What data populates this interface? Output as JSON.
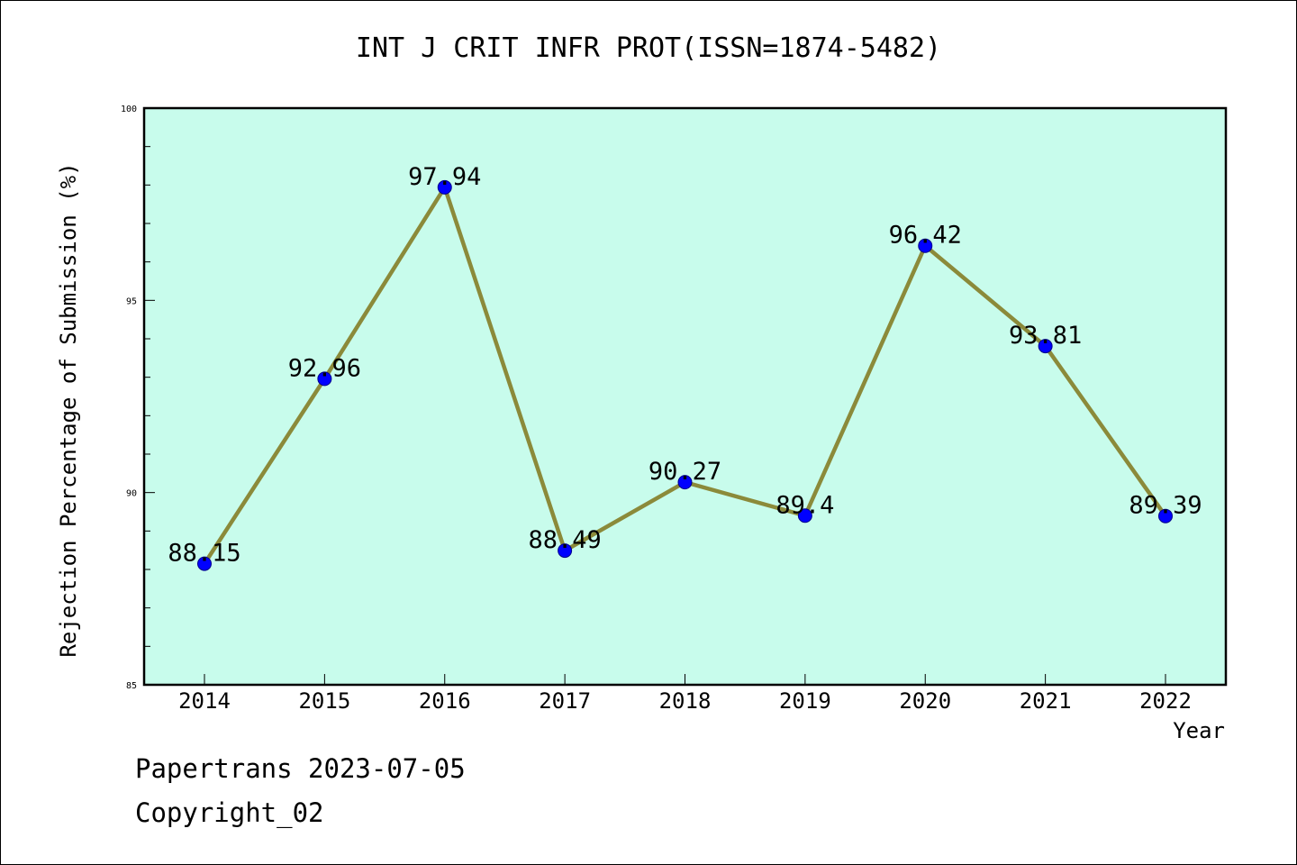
{
  "chart_data": {
    "type": "line",
    "title": "INT J CRIT INFR PROT(ISSN=1874-5482)",
    "xlabel": "Year",
    "ylabel": "Rejection Percentage of Submission (%)",
    "categories": [
      "2014",
      "2015",
      "2016",
      "2017",
      "2018",
      "2019",
      "2020",
      "2021",
      "2022"
    ],
    "values": [
      88.15,
      92.96,
      97.94,
      88.49,
      90.27,
      89.4,
      96.42,
      93.81,
      89.39
    ],
    "data_labels": [
      "88.15",
      "92.96",
      "97.94",
      "88.49",
      "90.27",
      "89.4",
      "96.42",
      "93.81",
      "89.39"
    ],
    "ylim": [
      85,
      100
    ],
    "y_ticks": [
      "85",
      "90",
      "95",
      "100"
    ],
    "grid": false,
    "colors": {
      "plot_background": "#c8fcec",
      "line": "#8b8a3a",
      "marker": "#0000ff"
    }
  },
  "footer": {
    "source": "Papertrans 2023-07-05",
    "copyright": "Copyright_02"
  }
}
